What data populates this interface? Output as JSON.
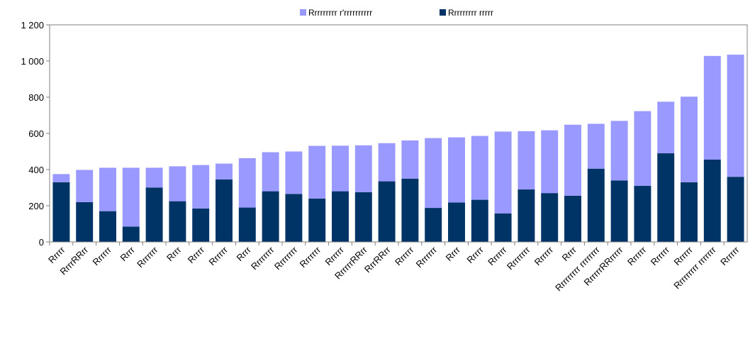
{
  "chart_data": {
    "type": "bar",
    "stacked": true,
    "categories": [
      "Rrrrr",
      "RrrrRRrr",
      "Rrrrrr",
      "Rrrr",
      "Rrrrrrr",
      "Rrrr",
      "Rrrrr",
      "Rrrrrr",
      "Rrrr",
      "Rrrrrrrr",
      "Rrrrrrrr",
      "Rrrrrrr",
      "Rrrrrr",
      "RrrrrrRRrr",
      "RrrRRrr",
      "Rrrrrr",
      "Rrrrrrr",
      "Rrrr",
      "Rrrrr",
      "Rrrrrr",
      "Rrrrrrrr",
      "Rrrrrr",
      "Rrrr",
      "Rrrrrrrrr rrrrrrrr",
      "RrrrrrRRrrrrr",
      "Rrrrrr",
      "Rrrrrr",
      "Rrrrrr",
      "Rrrrrrrrr rrrrrrr",
      "Rrrrrr"
    ],
    "series": [
      {
        "name": "Rrrrrrrrr rrrrr",
        "color": "#003366",
        "values": [
          330,
          220,
          170,
          85,
          300,
          225,
          185,
          345,
          190,
          280,
          265,
          240,
          280,
          275,
          335,
          350,
          188,
          218,
          233,
          158,
          290,
          270,
          255,
          405,
          340,
          310,
          490,
          330,
          455,
          360
        ]
      },
      {
        "name": "Rrrrrrrrr r'rrrrrrrrrr",
        "color": "#9999ff",
        "values": [
          45,
          178,
          240,
          325,
          110,
          193,
          240,
          88,
          273,
          216,
          235,
          291,
          252,
          259,
          211,
          211,
          386,
          360,
          353,
          452,
          322,
          347,
          393,
          248,
          329,
          413,
          285,
          473,
          573,
          675
        ]
      }
    ],
    "legend": [
      "Rrrrrrrrr r'rrrrrrrrrr",
      "Rrrrrrrrr rrrrr"
    ],
    "y_tick_labels": [
      "0",
      "200",
      "400",
      "600",
      "800",
      "1 000",
      "1 200"
    ],
    "ylim": [
      0,
      1200
    ],
    "legend_position": "top",
    "grid": false
  }
}
